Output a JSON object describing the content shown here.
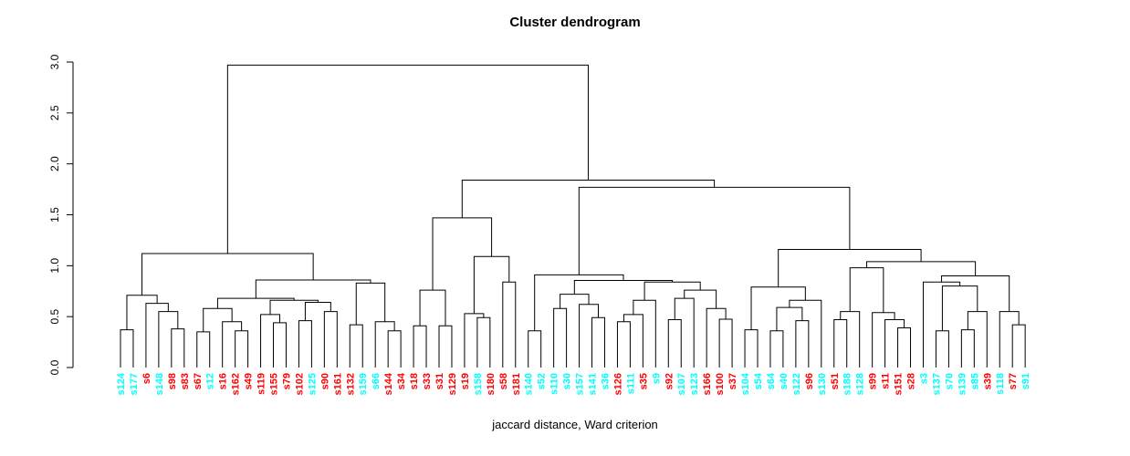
{
  "chart_data": {
    "type": "dendrogram",
    "title": "Cluster dendrogram",
    "caption": "jaccard distance, Ward criterion",
    "ylabel": "",
    "ylim": [
      0.0,
      3.0
    ],
    "yticks": [
      "0.0",
      "0.5",
      "1.0",
      "1.5",
      "2.0",
      "2.5",
      "3.0"
    ],
    "grid": false,
    "line_color": "#000000",
    "leaf_colors": {
      "cyan": "#00ffff",
      "red": "#ff0000"
    },
    "leaves": [
      {
        "label": "s124",
        "color": "cyan"
      },
      {
        "label": "s177",
        "color": "cyan"
      },
      {
        "label": "s6",
        "color": "red"
      },
      {
        "label": "s148",
        "color": "cyan"
      },
      {
        "label": "s98",
        "color": "red"
      },
      {
        "label": "s83",
        "color": "red"
      },
      {
        "label": "s67",
        "color": "red"
      },
      {
        "label": "s12",
        "color": "cyan"
      },
      {
        "label": "s16",
        "color": "red"
      },
      {
        "label": "s162",
        "color": "red"
      },
      {
        "label": "s49",
        "color": "red"
      },
      {
        "label": "s119",
        "color": "red"
      },
      {
        "label": "s155",
        "color": "red"
      },
      {
        "label": "s79",
        "color": "red"
      },
      {
        "label": "s102",
        "color": "red"
      },
      {
        "label": "s125",
        "color": "cyan"
      },
      {
        "label": "s90",
        "color": "red"
      },
      {
        "label": "s161",
        "color": "red"
      },
      {
        "label": "s132",
        "color": "red"
      },
      {
        "label": "s159",
        "color": "cyan"
      },
      {
        "label": "s66",
        "color": "cyan"
      },
      {
        "label": "s144",
        "color": "red"
      },
      {
        "label": "s34",
        "color": "red"
      },
      {
        "label": "s18",
        "color": "red"
      },
      {
        "label": "s33",
        "color": "red"
      },
      {
        "label": "s31",
        "color": "red"
      },
      {
        "label": "s129",
        "color": "red"
      },
      {
        "label": "s19",
        "color": "red"
      },
      {
        "label": "s158",
        "color": "cyan"
      },
      {
        "label": "s180",
        "color": "red"
      },
      {
        "label": "s58",
        "color": "red"
      },
      {
        "label": "s181",
        "color": "red"
      },
      {
        "label": "s140",
        "color": "cyan"
      },
      {
        "label": "s52",
        "color": "cyan"
      },
      {
        "label": "s110",
        "color": "cyan"
      },
      {
        "label": "s30",
        "color": "cyan"
      },
      {
        "label": "s157",
        "color": "cyan"
      },
      {
        "label": "s141",
        "color": "cyan"
      },
      {
        "label": "s36",
        "color": "cyan"
      },
      {
        "label": "s126",
        "color": "red"
      },
      {
        "label": "s111",
        "color": "cyan"
      },
      {
        "label": "s35",
        "color": "red"
      },
      {
        "label": "s9",
        "color": "cyan"
      },
      {
        "label": "s92",
        "color": "red"
      },
      {
        "label": "s107",
        "color": "cyan"
      },
      {
        "label": "s123",
        "color": "cyan"
      },
      {
        "label": "s166",
        "color": "red"
      },
      {
        "label": "s100",
        "color": "red"
      },
      {
        "label": "s37",
        "color": "red"
      },
      {
        "label": "s104",
        "color": "cyan"
      },
      {
        "label": "s54",
        "color": "cyan"
      },
      {
        "label": "s64",
        "color": "cyan"
      },
      {
        "label": "s40",
        "color": "cyan"
      },
      {
        "label": "s122",
        "color": "cyan"
      },
      {
        "label": "s96",
        "color": "red"
      },
      {
        "label": "s130",
        "color": "cyan"
      },
      {
        "label": "s51",
        "color": "red"
      },
      {
        "label": "s188",
        "color": "cyan"
      },
      {
        "label": "s128",
        "color": "cyan"
      },
      {
        "label": "s99",
        "color": "red"
      },
      {
        "label": "s11",
        "color": "red"
      },
      {
        "label": "s151",
        "color": "red"
      },
      {
        "label": "s28",
        "color": "red"
      },
      {
        "label": "s3",
        "color": "cyan"
      },
      {
        "label": "s137",
        "color": "cyan"
      },
      {
        "label": "s70",
        "color": "cyan"
      },
      {
        "label": "s139",
        "color": "cyan"
      },
      {
        "label": "s85",
        "color": "cyan"
      },
      {
        "label": "s39",
        "color": "red"
      },
      {
        "label": "s118",
        "color": "cyan"
      },
      {
        "label": "s77",
        "color": "red"
      },
      {
        "label": "s91",
        "color": "cyan"
      }
    ],
    "tree": [
      2.97,
      [
        1.12,
        [
          0.71,
          [
            0.37,
            "s124",
            "s177"
          ],
          [
            0.63,
            "s6",
            [
              0.55,
              "s148",
              [
                0.38,
                "s98",
                "s83"
              ]
            ]
          ]
        ],
        [
          0.86,
          [
            0.68,
            [
              0.58,
              [
                0.35,
                "s67",
                "s12"
              ],
              [
                0.45,
                "s16",
                [
                  0.36,
                  "s162",
                  "s49"
                ]
              ]
            ],
            [
              0.66,
              [
                0.52,
                "s119",
                [
                  0.44,
                  "s155",
                  "s79"
                ]
              ],
              [
                0.64,
                [
                  0.46,
                  "s102",
                  "s125"
                ],
                [
                  0.55,
                  "s90",
                  "s161"
                ]
              ]
            ]
          ],
          [
            0.83,
            [
              0.42,
              "s132",
              "s159"
            ],
            [
              0.45,
              "s66",
              [
                0.36,
                "s144",
                "s34"
              ]
            ]
          ]
        ]
      ],
      [
        1.84,
        [
          1.47,
          [
            0.76,
            [
              0.41,
              "s18",
              "s33"
            ],
            [
              0.41,
              "s31",
              "s129"
            ]
          ],
          [
            1.09,
            [
              0.53,
              "s19",
              [
                0.49,
                "s158",
                "s180"
              ]
            ],
            [
              0.84,
              "s58",
              "s181"
            ]
          ]
        ],
        [
          1.77,
          [
            0.91,
            [
              0.36,
              "s140",
              "s52"
            ],
            [
              0.855,
              [
                0.72,
                [
                  0.58,
                  "s110",
                  "s30"
                ],
                [
                  0.62,
                  "s157",
                  [
                    0.49,
                    "s141",
                    "s36"
                  ]
                ]
              ],
              [
                0.84,
                [
                  0.66,
                  [
                    0.52,
                    [
                      0.45,
                      "s126",
                      "s111"
                    ],
                    "s35"
                  ],
                  "s9"
                ],
                [
                  0.76,
                  [
                    0.68,
                    [
                      0.47,
                      "s92",
                      "s107"
                    ],
                    "s123"
                  ],
                  [
                    0.58,
                    "s166",
                    [
                      0.475,
                      "s100",
                      "s37"
                    ]
                  ]
                ]
              ]
            ]
          ],
          [
            1.16,
            [
              0.79,
              [
                0.37,
                "s104",
                "s54"
              ],
              [
                0.66,
                [
                  0.59,
                  [
                    0.36,
                    "s64",
                    "s40"
                  ],
                  [
                    0.46,
                    "s122",
                    "s96"
                  ]
                ],
                "s130"
              ]
            ],
            [
              1.04,
              [
                0.98,
                [
                  0.55,
                  [
                    0.47,
                    "s51",
                    "s188"
                  ],
                  "s128"
                ],
                [
                  0.54,
                  "s99",
                  [
                    0.47,
                    "s11",
                    [
                      0.39,
                      "s151",
                      "s28"
                    ]
                  ]
                ]
              ],
              [
                0.9,
                [
                  0.84,
                  "s3",
                  [
                    0.8,
                    [
                      0.36,
                      "s137",
                      "s70"
                    ],
                    [
                      0.55,
                      [
                        0.37,
                        "s139",
                        "s85"
                      ],
                      "s39"
                    ]
                  ]
                ],
                [
                  0.55,
                  "s118",
                  [
                    0.42,
                    "s77",
                    "s91"
                  ]
                ]
              ]
            ]
          ]
        ]
      ]
    ]
  }
}
